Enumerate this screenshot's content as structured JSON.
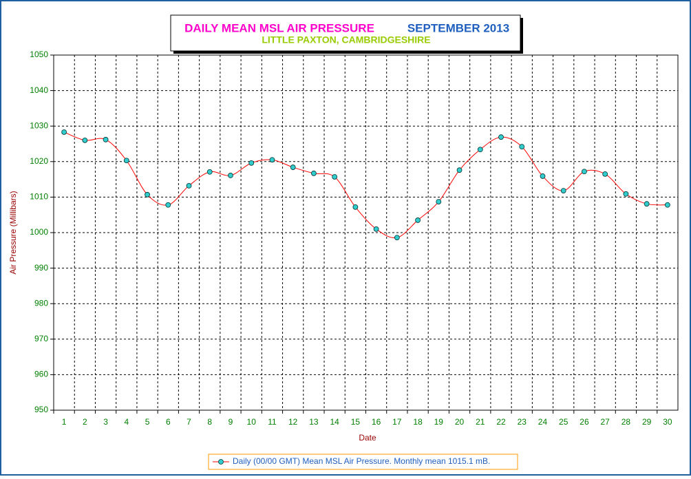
{
  "chart_data": {
    "type": "line",
    "title": "DAILY MEAN MSL AIR PRESSURE",
    "title_period": "SEPTEMBER 2013",
    "subtitle": "LITTLE PAXTON, CAMBRIDGESHIRE",
    "x_label": "Date",
    "y_label": "Air Pressure (Millibars)",
    "categories": [
      "1",
      "2",
      "3",
      "4",
      "5",
      "6",
      "7",
      "8",
      "9",
      "10",
      "11",
      "12",
      "13",
      "14",
      "15",
      "16",
      "17",
      "18",
      "19",
      "20",
      "21",
      "22",
      "23",
      "24",
      "25",
      "26",
      "27",
      "28",
      "29",
      "30"
    ],
    "series": [
      {
        "name": "Daily (00/00 GMT) Mean MSL Air Pressure. Monthly mean 1015.1 mB.",
        "color": "#ff0000",
        "marker_color": "#33cccc",
        "values": [
          1028.3,
          1026.0,
          1026.2,
          1020.3,
          1010.7,
          1007.8,
          1013.2,
          1017.1,
          1016.1,
          1019.6,
          1020.5,
          1018.4,
          1016.7,
          1015.7,
          1007.2,
          1001.0,
          998.6,
          1003.5,
          1008.7,
          1017.6,
          1023.4,
          1026.9,
          1024.2,
          1015.9,
          1011.8,
          1017.2,
          1016.5,
          1010.9,
          1008.1,
          1007.8
        ]
      }
    ],
    "ylim": [
      950,
      1050
    ],
    "yticks": [
      950,
      960,
      970,
      980,
      990,
      1000,
      1010,
      1020,
      1030,
      1040,
      1050
    ],
    "grid": true,
    "smooth": true,
    "legend": "bottom"
  }
}
